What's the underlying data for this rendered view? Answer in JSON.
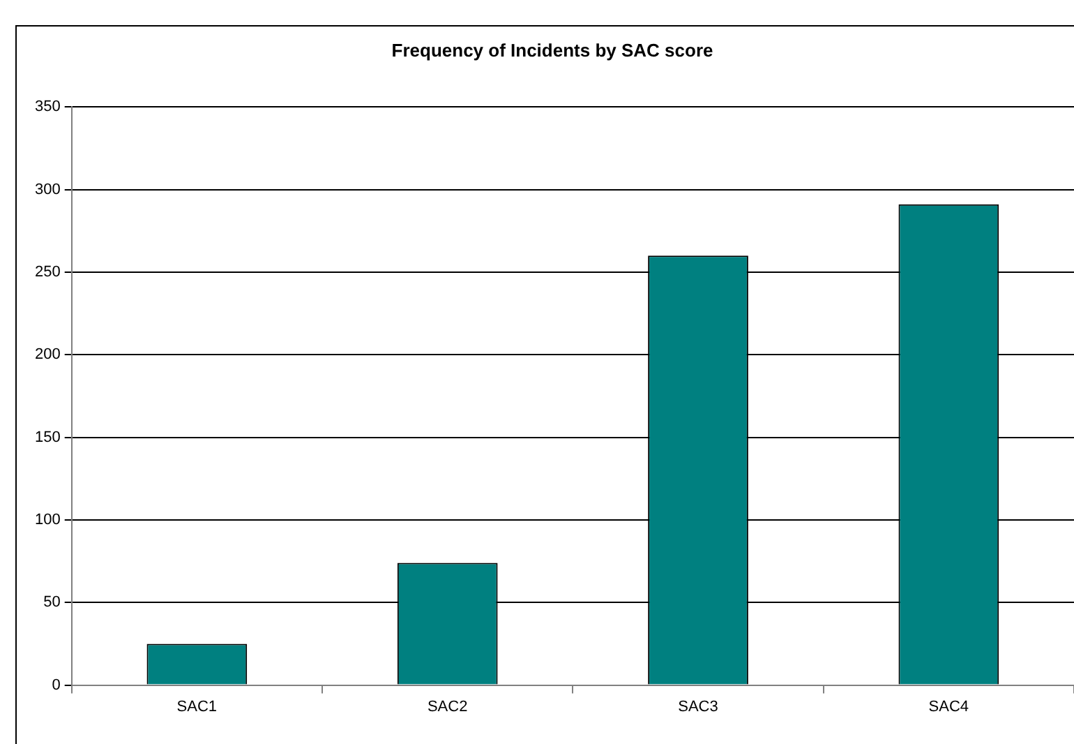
{
  "chart_data": {
    "type": "bar",
    "title": "Frequency of Incidents by SAC score",
    "categories": [
      "SAC1",
      "SAC2",
      "SAC3",
      "SAC4"
    ],
    "values": [
      25,
      74,
      260,
      291
    ],
    "color": "#008080",
    "ylim": [
      0,
      350
    ],
    "yticks": [
      0,
      50,
      100,
      150,
      200,
      250,
      300,
      350
    ],
    "grid": "y"
  }
}
